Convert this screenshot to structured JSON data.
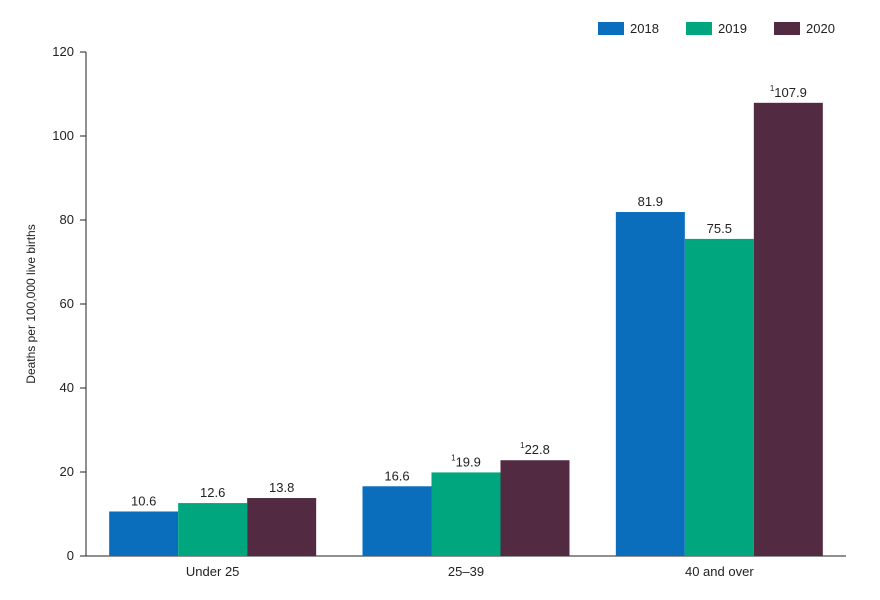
{
  "chart_data": {
    "type": "bar",
    "title": "",
    "xlabel": "",
    "ylabel": "Deaths per 100,000 live births",
    "ylim": [
      0,
      120
    ],
    "yticks": [
      0,
      20,
      40,
      60,
      80,
      100,
      120
    ],
    "grid": false,
    "legend_position": "top-right",
    "categories": [
      "Under 25",
      "25–39",
      "40 and over"
    ],
    "series": [
      {
        "name": "2018",
        "color": "#0a6ebd",
        "values": [
          10.6,
          16.6,
          81.9
        ],
        "labels": [
          "10.6",
          "16.6",
          "81.9"
        ],
        "notes": [
          "",
          "",
          ""
        ]
      },
      {
        "name": "2019",
        "color": "#00a67e",
        "values": [
          12.6,
          19.9,
          75.5
        ],
        "labels": [
          "12.6",
          "19.9",
          "75.5"
        ],
        "notes": [
          "",
          "1",
          ""
        ]
      },
      {
        "name": "2020",
        "color": "#522a42",
        "values": [
          13.8,
          22.8,
          107.9
        ],
        "labels": [
          "13.8",
          "22.8",
          "107.9"
        ],
        "notes": [
          "",
          "1",
          "1"
        ]
      }
    ]
  }
}
